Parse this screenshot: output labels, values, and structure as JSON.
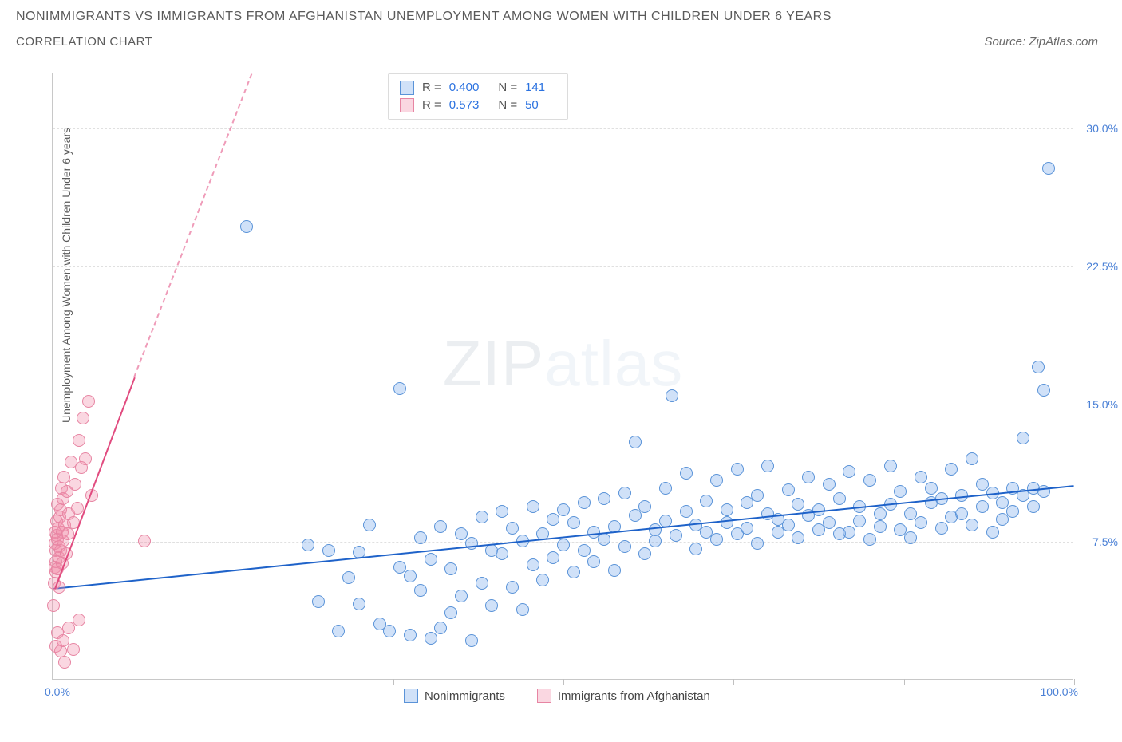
{
  "title_line1": "NONIMMIGRANTS VS IMMIGRANTS FROM AFGHANISTAN UNEMPLOYMENT AMONG WOMEN WITH CHILDREN UNDER 6 YEARS",
  "title_line2": "CORRELATION CHART",
  "source": "Source: ZipAtlas.com",
  "ylabel": "Unemployment Among Women with Children Under 6 years",
  "watermark_a": "ZIP",
  "watermark_b": "atlas",
  "chart": {
    "type": "scatter",
    "background_color": "#ffffff",
    "grid_color": "#e0e0e0",
    "axis_color": "#c8c8c8",
    "tick_label_color": "#4a80d6",
    "xlim": [
      0,
      100
    ],
    "ylim": [
      0,
      33
    ],
    "xticks": [
      0,
      16.67,
      33.33,
      50,
      66.67,
      83.33,
      100
    ],
    "xmin_label": "0.0%",
    "xmax_label": "100.0%",
    "yticks": [
      {
        "v": 7.5,
        "label": "7.5%"
      },
      {
        "v": 15.0,
        "label": "15.0%"
      },
      {
        "v": 22.5,
        "label": "22.5%"
      },
      {
        "v": 30.0,
        "label": "30.0%"
      }
    ],
    "marker_radius": 8,
    "marker_stroke_width": 1.2,
    "series": [
      {
        "id": "nonimmigrants",
        "label": "Nonimmigrants",
        "fill": "rgba(120,170,235,0.35)",
        "stroke": "#5a93d8",
        "R": "0.400",
        "N": "141",
        "trend": {
          "x1": 0,
          "y1": 5.0,
          "x2": 100,
          "y2": 10.6,
          "color": "#1e62c9",
          "width": 2
        },
        "points": [
          [
            19,
            24.6
          ],
          [
            97.5,
            27.8
          ],
          [
            25,
            7.3
          ],
          [
            26,
            4.2
          ],
          [
            27,
            7.0
          ],
          [
            28,
            2.6
          ],
          [
            29,
            5.5
          ],
          [
            30,
            6.9
          ],
          [
            30,
            4.1
          ],
          [
            31,
            8.4
          ],
          [
            32,
            3.0
          ],
          [
            33,
            2.6
          ],
          [
            34,
            6.1
          ],
          [
            35,
            5.6
          ],
          [
            34,
            15.8
          ],
          [
            35,
            2.4
          ],
          [
            36,
            7.7
          ],
          [
            36,
            4.8
          ],
          [
            37,
            2.2
          ],
          [
            37,
            6.5
          ],
          [
            38,
            8.3
          ],
          [
            38,
            2.8
          ],
          [
            39,
            6.0
          ],
          [
            39,
            3.6
          ],
          [
            40,
            7.9
          ],
          [
            40,
            4.5
          ],
          [
            41,
            2.1
          ],
          [
            41,
            7.4
          ],
          [
            42,
            5.2
          ],
          [
            42,
            8.8
          ],
          [
            43,
            7.0
          ],
          [
            43,
            4.0
          ],
          [
            44,
            9.1
          ],
          [
            44,
            6.8
          ],
          [
            45,
            5.0
          ],
          [
            45,
            8.2
          ],
          [
            46,
            7.5
          ],
          [
            46,
            3.8
          ],
          [
            47,
            9.4
          ],
          [
            47,
            6.2
          ],
          [
            48,
            7.9
          ],
          [
            48,
            5.4
          ],
          [
            49,
            8.7
          ],
          [
            49,
            6.6
          ],
          [
            50,
            9.2
          ],
          [
            50,
            7.3
          ],
          [
            51,
            5.8
          ],
          [
            51,
            8.5
          ],
          [
            52,
            7.0
          ],
          [
            52,
            9.6
          ],
          [
            53,
            6.4
          ],
          [
            53,
            8.0
          ],
          [
            54,
            9.8
          ],
          [
            54,
            7.6
          ],
          [
            55,
            5.9
          ],
          [
            55,
            8.3
          ],
          [
            56,
            10.1
          ],
          [
            56,
            7.2
          ],
          [
            57,
            12.9
          ],
          [
            57,
            8.9
          ],
          [
            58,
            6.8
          ],
          [
            58,
            9.4
          ],
          [
            59,
            8.1
          ],
          [
            59,
            7.5
          ],
          [
            60,
            10.4
          ],
          [
            60,
            8.6
          ],
          [
            60.6,
            15.4
          ],
          [
            61,
            7.8
          ],
          [
            62,
            9.1
          ],
          [
            62,
            11.2
          ],
          [
            63,
            8.4
          ],
          [
            63,
            7.1
          ],
          [
            64,
            9.7
          ],
          [
            64,
            8.0
          ],
          [
            65,
            10.8
          ],
          [
            65,
            7.6
          ],
          [
            66,
            9.2
          ],
          [
            66,
            8.5
          ],
          [
            67,
            11.4
          ],
          [
            67,
            7.9
          ],
          [
            68,
            9.6
          ],
          [
            68,
            8.2
          ],
          [
            69,
            10.0
          ],
          [
            69,
            7.4
          ],
          [
            70,
            9.0
          ],
          [
            70,
            11.6
          ],
          [
            71,
            8.7
          ],
          [
            71,
            8.0
          ],
          [
            72,
            10.3
          ],
          [
            72,
            8.4
          ],
          [
            73,
            9.5
          ],
          [
            73,
            7.7
          ],
          [
            74,
            11.0
          ],
          [
            74,
            8.9
          ],
          [
            75,
            9.2
          ],
          [
            75,
            8.1
          ],
          [
            76,
            10.6
          ],
          [
            76,
            8.5
          ],
          [
            77,
            9.8
          ],
          [
            77,
            7.9
          ],
          [
            78,
            11.3
          ],
          [
            78,
            8.0
          ],
          [
            79,
            9.4
          ],
          [
            79,
            8.6
          ],
          [
            80,
            10.8
          ],
          [
            80,
            7.6
          ],
          [
            81,
            9.0
          ],
          [
            81,
            8.3
          ],
          [
            82,
            11.6
          ],
          [
            82,
            9.5
          ],
          [
            83,
            8.1
          ],
          [
            83,
            10.2
          ],
          [
            84,
            9.0
          ],
          [
            84,
            7.7
          ],
          [
            85,
            11.0
          ],
          [
            85,
            8.5
          ],
          [
            86,
            9.6
          ],
          [
            86,
            10.4
          ],
          [
            87,
            8.2
          ],
          [
            87,
            9.8
          ],
          [
            88,
            11.4
          ],
          [
            88,
            8.8
          ],
          [
            89,
            10.0
          ],
          [
            89,
            9.0
          ],
          [
            90,
            12.0
          ],
          [
            90,
            8.4
          ],
          [
            91,
            10.6
          ],
          [
            91,
            9.4
          ],
          [
            92,
            8.0
          ],
          [
            92,
            10.1
          ],
          [
            93,
            9.6
          ],
          [
            93,
            8.7
          ],
          [
            94,
            10.4
          ],
          [
            94,
            9.1
          ],
          [
            95,
            10.0
          ],
          [
            95,
            13.1
          ],
          [
            96,
            10.4
          ],
          [
            96,
            9.4
          ],
          [
            96.5,
            17.0
          ],
          [
            97,
            15.7
          ],
          [
            97,
            10.2
          ]
        ]
      },
      {
        "id": "immigrants",
        "label": "Immigrants from Afghanistan",
        "fill": "rgba(240,140,170,0.35)",
        "stroke": "#e785a3",
        "R": "0.573",
        "N": "50",
        "trend": {
          "x1": 0.2,
          "y1": 5.0,
          "x2": 8.0,
          "y2": 16.5,
          "color": "#e14b7f",
          "width": 2
        },
        "trend_dash": {
          "x1": 8.0,
          "y1": 16.5,
          "x2": 19.5,
          "y2": 33.0,
          "color": "rgba(225,75,127,0.55)"
        },
        "points": [
          [
            0.1,
            4.0
          ],
          [
            0.15,
            5.2
          ],
          [
            0.2,
            6.1
          ],
          [
            0.2,
            7.4
          ],
          [
            0.25,
            8.0
          ],
          [
            0.3,
            5.8
          ],
          [
            0.3,
            7.0
          ],
          [
            0.35,
            6.4
          ],
          [
            0.4,
            7.8
          ],
          [
            0.4,
            8.6
          ],
          [
            0.45,
            9.5
          ],
          [
            0.5,
            6.0
          ],
          [
            0.5,
            7.6
          ],
          [
            0.55,
            8.2
          ],
          [
            0.6,
            5.0
          ],
          [
            0.6,
            7.2
          ],
          [
            0.65,
            6.6
          ],
          [
            0.7,
            8.8
          ],
          [
            0.75,
            7.0
          ],
          [
            0.8,
            9.2
          ],
          [
            0.85,
            10.4
          ],
          [
            0.9,
            6.3
          ],
          [
            0.9,
            8.0
          ],
          [
            1.0,
            7.5
          ],
          [
            1.0,
            9.8
          ],
          [
            1.1,
            11.0
          ],
          [
            1.2,
            8.4
          ],
          [
            1.3,
            6.8
          ],
          [
            1.4,
            10.2
          ],
          [
            1.5,
            7.9
          ],
          [
            1.6,
            9.0
          ],
          [
            1.8,
            11.8
          ],
          [
            2.0,
            8.5
          ],
          [
            2.2,
            10.6
          ],
          [
            2.4,
            9.3
          ],
          [
            2.6,
            13.0
          ],
          [
            2.8,
            11.5
          ],
          [
            3.0,
            14.2
          ],
          [
            3.2,
            12.0
          ],
          [
            3.5,
            15.1
          ],
          [
            3.8,
            10.0
          ],
          [
            0.3,
            1.8
          ],
          [
            0.5,
            2.5
          ],
          [
            0.8,
            1.5
          ],
          [
            1.0,
            2.1
          ],
          [
            1.2,
            0.9
          ],
          [
            1.6,
            2.8
          ],
          [
            2.0,
            1.6
          ],
          [
            2.6,
            3.2
          ],
          [
            9.0,
            7.5
          ]
        ]
      }
    ]
  },
  "legend": {
    "stat_r_label": "R =",
    "stat_n_label": "N ="
  }
}
